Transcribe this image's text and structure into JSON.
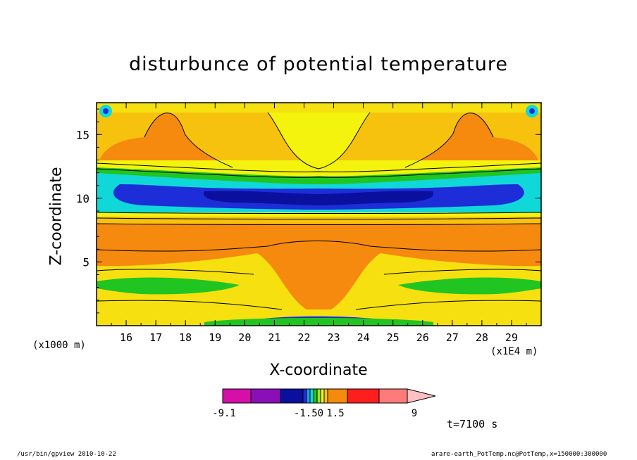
{
  "chart_data": {
    "type": "heatmap",
    "title": "disturbunce of potential temperature",
    "xlabel": "X-coordinate",
    "ylabel": "Z-coordinate",
    "x_unit": "(x1E4 m)",
    "y_unit": "(x1000 m)",
    "xlim": [
      15.0,
      30.0
    ],
    "ylim": [
      0.0,
      17.5
    ],
    "x_ticks": [
      "16",
      "17",
      "18",
      "19",
      "20",
      "21",
      "22",
      "23",
      "24",
      "25",
      "26",
      "27",
      "28",
      "29"
    ],
    "y_ticks": [
      "5",
      "10",
      "15"
    ],
    "colorbar": {
      "colors": [
        "#d60fa8",
        "#8b0fb8",
        "#0a0f9e",
        "#1d2dd8",
        "#1f9cf0",
        "#10d8d8",
        "#21c521",
        "#9be51e",
        "#f3f30e",
        "#f6c20e",
        "#f58a0f",
        "#ff1e1e",
        "#ff7a7a",
        "#ffc0c0"
      ],
      "labels": [
        "-9.1",
        "-1.50",
        "1.5",
        "9"
      ]
    },
    "time_label": "t=7100 s"
  },
  "footer": {
    "left": "/usr/bin/gpview   2010-10-22",
    "right": "arare-earth_PotTemp.nc@PotTemp,x=150000:300000"
  }
}
